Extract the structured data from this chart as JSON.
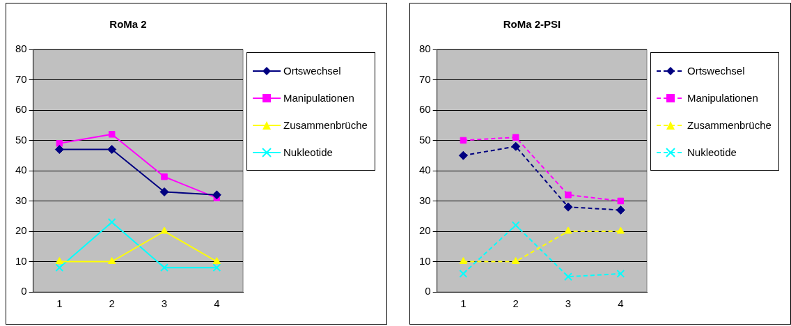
{
  "chart_data": [
    {
      "type": "line",
      "title": "RoMa 2",
      "categories": [
        "1",
        "2",
        "3",
        "4"
      ],
      "ylim": [
        0,
        80
      ],
      "yticks": [
        0,
        10,
        20,
        30,
        40,
        50,
        60,
        70,
        80
      ],
      "grid": "y",
      "legend": "right",
      "line_style": "solid",
      "series": [
        {
          "name": "Ortswechsel",
          "color": "#000080",
          "marker": "diamond",
          "values": [
            47,
            47,
            33,
            32
          ]
        },
        {
          "name": "Manipulationen",
          "color": "#ff00ff",
          "marker": "square",
          "values": [
            49,
            52,
            38,
            31
          ]
        },
        {
          "name": "Zusammenbrüche",
          "color": "#ffff00",
          "marker": "triangle",
          "values": [
            10,
            10,
            20,
            10
          ]
        },
        {
          "name": "Nukleotide",
          "color": "#00ffff",
          "marker": "cross",
          "values": [
            8,
            23,
            8,
            8
          ]
        }
      ]
    },
    {
      "type": "line",
      "title": "RoMa 2-PSI",
      "categories": [
        "1",
        "2",
        "3",
        "4"
      ],
      "ylim": [
        0,
        80
      ],
      "yticks": [
        0,
        10,
        20,
        30,
        40,
        50,
        60,
        70,
        80
      ],
      "grid": "y",
      "legend": "right",
      "line_style": "dashed",
      "series": [
        {
          "name": "Ortswechsel",
          "color": "#000080",
          "marker": "diamond",
          "values": [
            45,
            48,
            28,
            27
          ]
        },
        {
          "name": "Manipulationen",
          "color": "#ff00ff",
          "marker": "square",
          "values": [
            50,
            51,
            32,
            30
          ]
        },
        {
          "name": "Zusammenbrüche",
          "color": "#ffff00",
          "marker": "triangle",
          "values": [
            10,
            10,
            20,
            20
          ]
        },
        {
          "name": "Nukleotide",
          "color": "#00ffff",
          "marker": "cross",
          "values": [
            6,
            22,
            5,
            6
          ]
        }
      ]
    }
  ]
}
